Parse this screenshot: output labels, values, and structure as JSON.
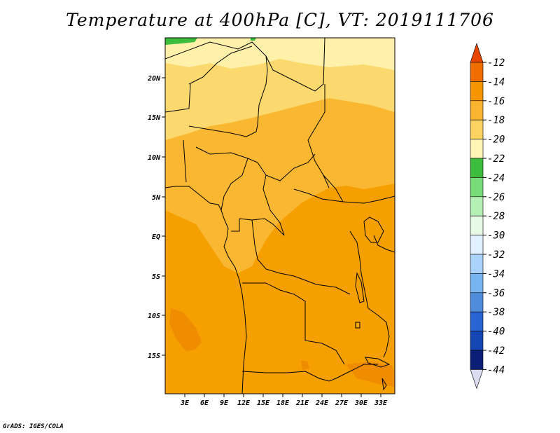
{
  "title": "Temperature at 400hPa [C], VT: 2019111706",
  "credit": "GrADS: IGES/COLA",
  "map": {
    "lat_labels": [
      "20N",
      "15N",
      "10N",
      "5N",
      "EQ",
      "5S",
      "10S",
      "15S"
    ],
    "lon_labels": [
      "3E",
      "6E",
      "9E",
      "12E",
      "15E",
      "18E",
      "21E",
      "24E",
      "27E",
      "30E",
      "33E"
    ],
    "lat_range": [
      -20,
      25
    ],
    "lon_range": [
      0,
      35
    ],
    "units": "C",
    "colors": {
      "minus14_to_minus12": "#f08c00",
      "minus16_to_minus14": "#f5a000",
      "minus18_to_minus16": "#fab832",
      "minus20_to_minus18": "#fcd96e",
      "minus22_to_minus20": "#fff0aa",
      "minus24_to_minus22": "#3cbe3c"
    }
  },
  "colorbar": {
    "labels": [
      "-12",
      "-14",
      "-16",
      "-18",
      "-20",
      "-22",
      "-24",
      "-26",
      "-28",
      "-30",
      "-32",
      "-34",
      "-36",
      "-38",
      "-40",
      "-42",
      "-44"
    ],
    "colors": [
      "#e64600",
      "#f06e00",
      "#f59600",
      "#fab430",
      "#fcd260",
      "#fff5b4",
      "#3cbe3c",
      "#78dc78",
      "#b4f0b4",
      "#e6fae6",
      "#e1f0ff",
      "#aad2fa",
      "#78b4f0",
      "#508cdc",
      "#2864d2",
      "#1446b4",
      "#0a1e78",
      "#dcdcf0"
    ]
  }
}
